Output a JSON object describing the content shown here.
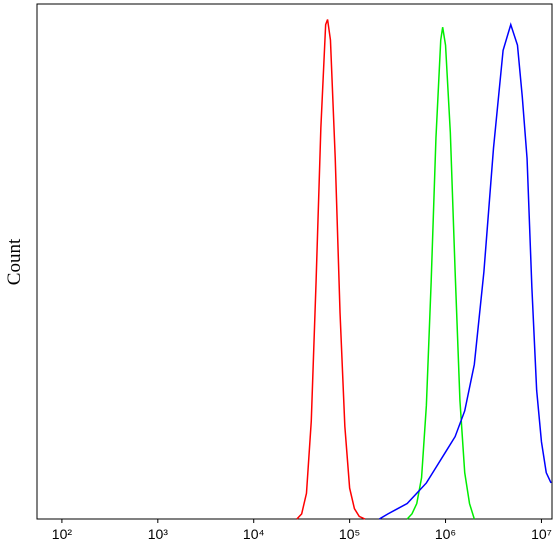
{
  "chart_data": {
    "type": "line",
    "y_label": "Count",
    "x_log": true,
    "xlim": [
      55,
      12882496
    ],
    "ylim": [
      0,
      100
    ],
    "xticks": [
      {
        "value": 100,
        "label": "10²"
      },
      {
        "value": 1000,
        "label": "10³"
      },
      {
        "value": 10000,
        "label": "10⁴"
      },
      {
        "value": 100000,
        "label": "10⁵"
      },
      {
        "value": 1000000,
        "label": "10⁶"
      },
      {
        "value": 10000000,
        "label": "10⁷"
      }
    ],
    "series": [
      {
        "color": "#ff0000",
        "x": [
          28184,
          31623,
          35481,
          39811,
          44668,
          50119,
          56234,
          58884,
          63096,
          70795,
          79433,
          89125,
          100000,
          112202,
          125893,
          144544
        ],
        "values": [
          0,
          1,
          5,
          19,
          46,
          76,
          96,
          97,
          93,
          70,
          40,
          18,
          6,
          2,
          0.5,
          0
        ]
      },
      {
        "color": "#00ee00",
        "x": [
          398107,
          446684,
          501187,
          562341,
          630957,
          707946,
          794328,
          891251,
          933254,
          1000000,
          1122018,
          1258925,
          1412538,
          1584893,
          1778279,
          1995262
        ],
        "values": [
          0,
          1,
          3,
          8,
          22,
          46,
          74,
          93,
          95.5,
          92,
          75,
          48,
          23,
          9,
          3,
          0
        ]
      },
      {
        "color": "#0000ff",
        "x": [
          204174,
          251189,
          316228,
          398107,
          501187,
          630957,
          794328,
          1000000,
          1258925,
          1584893,
          1995262,
          2511886,
          3162278,
          3981072,
          4786301,
          5623413,
          6309573,
          7079458,
          7943282,
          8912509,
          10000000,
          11220185,
          12589254
        ],
        "values": [
          0,
          1,
          2,
          3,
          5,
          7,
          10,
          13,
          16,
          21,
          30,
          48,
          72,
          91,
          96,
          92,
          82,
          70,
          45,
          25,
          15,
          9,
          7
        ]
      }
    ]
  }
}
